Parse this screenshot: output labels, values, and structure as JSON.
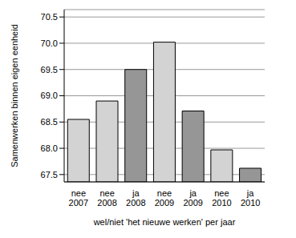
{
  "chart_data": {
    "type": "bar",
    "x_label": "wel/niet 'het nieuwe werken' per jaar",
    "y_label": "Samenwerken binnen eigen eenheid",
    "categories": [
      "nee 2007",
      "nee 2008",
      "ja 2008",
      "nee 2009",
      "ja 2009",
      "nee 2010",
      "ja 2010"
    ],
    "values": [
      68.55,
      68.9,
      69.5,
      70.02,
      68.71,
      67.97,
      67.62
    ],
    "colors": [
      "#d3d3d3",
      "#d3d3d3",
      "#969696",
      "#d3d3d3",
      "#969696",
      "#d3d3d3",
      "#969696"
    ],
    "ylim": [
      67.36,
      70.64
    ],
    "yticks": [
      {
        "value": 67.5,
        "label": "67.5"
      },
      {
        "value": 68,
        "label": "68.0"
      },
      {
        "value": 68.5,
        "label": "68.5"
      },
      {
        "value": 69,
        "label": "69.0"
      },
      {
        "value": 69.5,
        "label": "69.5"
      },
      {
        "value": 70,
        "label": "70.0"
      },
      {
        "value": 70.5,
        "label": "70.5"
      }
    ],
    "grid": true
  }
}
